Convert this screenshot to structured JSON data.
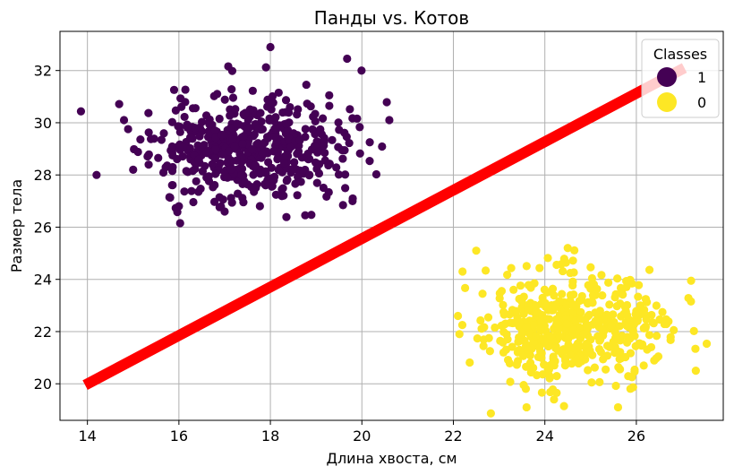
{
  "chart_data": {
    "type": "scatter",
    "title": "Панды vs. Котов",
    "xlabel": "Длина хвоста, см",
    "ylabel": "Размер тела",
    "xlim": [
      13.4,
      27.9
    ],
    "ylim": [
      18.6,
      33.5
    ],
    "xticks": [
      14,
      16,
      18,
      20,
      22,
      24,
      26
    ],
    "yticks": [
      20,
      22,
      24,
      26,
      28,
      30,
      32
    ],
    "grid": true,
    "legend": {
      "title": "Classes",
      "placement": "top-right"
    },
    "series": [
      {
        "name": "1",
        "color": "#440154",
        "cluster": {
          "center": [
            17.5,
            29.0
          ],
          "std": [
            1.05,
            1.0
          ],
          "count": 500,
          "seed": 11
        },
        "outliers": [
          {
            "x": 14.2,
            "y": 28.0
          },
          {
            "x": 18.0,
            "y": 32.9
          },
          {
            "x": 20.6,
            "y": 30.1
          },
          {
            "x": 15.0,
            "y": 28.2
          },
          {
            "x": 16.0,
            "y": 26.8
          },
          {
            "x": 19.8,
            "y": 27.1
          },
          {
            "x": 14.8,
            "y": 30.1
          },
          {
            "x": 17.0,
            "y": 26.6
          }
        ]
      },
      {
        "name": "0",
        "color": "#fde725",
        "cluster": {
          "center": [
            24.6,
            22.2
          ],
          "std": [
            1.0,
            1.0
          ],
          "count": 500,
          "seed": 29
        },
        "outliers": [
          {
            "x": 27.3,
            "y": 20.5
          },
          {
            "x": 22.5,
            "y": 25.1
          },
          {
            "x": 24.5,
            "y": 25.2
          },
          {
            "x": 22.1,
            "y": 22.6
          },
          {
            "x": 23.6,
            "y": 19.1
          },
          {
            "x": 25.6,
            "y": 19.1
          },
          {
            "x": 24.2,
            "y": 19.4
          },
          {
            "x": 22.2,
            "y": 24.3
          }
        ]
      }
    ],
    "decision_line": {
      "color": "#ff0000",
      "points": [
        {
          "x": 13.95,
          "y": 19.95
        },
        {
          "x": 27.05,
          "y": 32.1
        }
      ]
    }
  }
}
